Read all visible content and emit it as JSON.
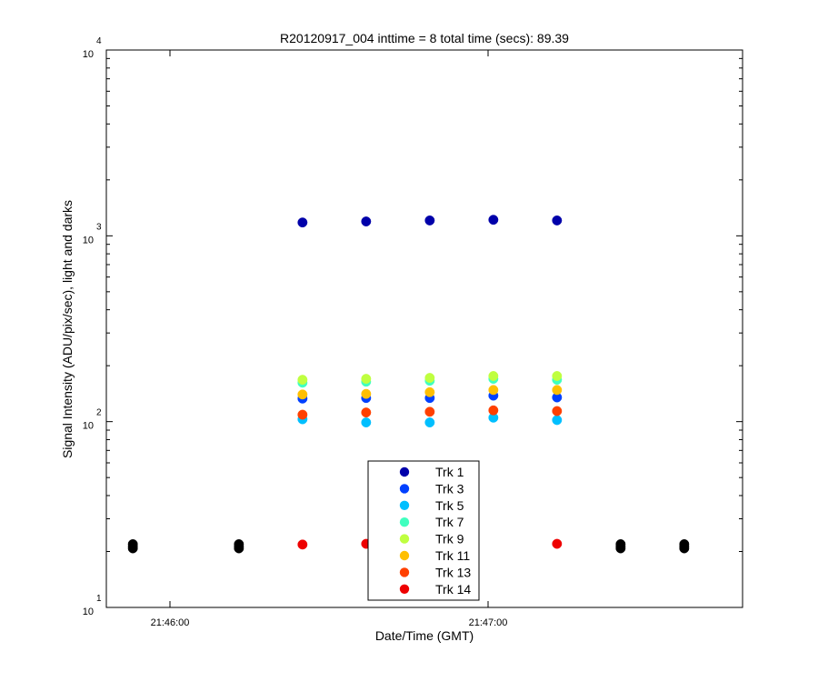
{
  "chart_data": {
    "type": "scatter",
    "title": "R20120917_004 inttime = 8 total time (secs): 89.39",
    "xlabel": "Date/Time (GMT)",
    "ylabel": "Signal Intensity (ADU/pix/sec), light and darks",
    "y_scale": "log",
    "ylim": [
      10,
      10000
    ],
    "xlim": [
      "21:45:48",
      "21:47:48"
    ],
    "x_ticks": [
      "21:46:00",
      "21:47:00"
    ],
    "y_ticks": [
      {
        "base": "10",
        "exp": "1"
      },
      {
        "base": "10",
        "exp": "2"
      },
      {
        "base": "10",
        "exp": "3"
      },
      {
        "base": "10",
        "exp": "4"
      }
    ],
    "legend_position": "bottom-center",
    "series": [
      {
        "name": "Trk 1",
        "color": "#0000AA",
        "x": [
          "21:46:25",
          "21:46:37",
          "21:46:49",
          "21:47:01",
          "21:47:13"
        ],
        "y": [
          1180,
          1195,
          1210,
          1220,
          1210
        ]
      },
      {
        "name": "Trk 3",
        "color": "#0040FF",
        "x": [
          "21:46:25",
          "21:46:37",
          "21:46:49",
          "21:47:01",
          "21:47:13"
        ],
        "y": [
          133,
          134,
          134,
          138,
          135
        ]
      },
      {
        "name": "Trk 5",
        "color": "#00BFFF",
        "x": [
          "21:46:25",
          "21:46:37",
          "21:46:49",
          "21:47:01",
          "21:47:13"
        ],
        "y": [
          103,
          99,
          99,
          105,
          102
        ]
      },
      {
        "name": "Trk 7",
        "color": "#40FFBF",
        "x": [
          "21:46:25",
          "21:46:37",
          "21:46:49",
          "21:47:01",
          "21:47:13"
        ],
        "y": [
          162,
          164,
          166,
          170,
          168
        ]
      },
      {
        "name": "Trk 9",
        "color": "#BFFF40",
        "x": [
          "21:46:25",
          "21:46:37",
          "21:46:49",
          "21:47:01",
          "21:47:13"
        ],
        "y": [
          168,
          170,
          172,
          176,
          176
        ]
      },
      {
        "name": "Trk 11",
        "color": "#FFBF00",
        "x": [
          "21:46:25",
          "21:46:37",
          "21:46:49",
          "21:47:01",
          "21:47:13"
        ],
        "y": [
          140,
          141,
          144,
          148,
          148
        ]
      },
      {
        "name": "Trk 13",
        "color": "#FF4000",
        "x": [
          "21:46:25",
          "21:46:37",
          "21:46:49",
          "21:47:01",
          "21:47:13"
        ],
        "y": [
          109,
          112,
          113,
          115,
          114
        ]
      },
      {
        "name": "Trk 14",
        "color": "#EE0000",
        "x": [
          "21:46:25",
          "21:46:37",
          "21:47:13"
        ],
        "y": [
          21.8,
          22,
          22
        ]
      },
      {
        "name": "",
        "color": "#000000",
        "x": [
          "21:45:53",
          "21:45:53",
          "21:45:53",
          "21:46:13",
          "21:46:13",
          "21:46:13",
          "21:47:25",
          "21:47:25",
          "21:47:25",
          "21:47:37",
          "21:47:37",
          "21:47:37"
        ],
        "y": [
          20.8,
          21.3,
          21.9,
          20.8,
          21.3,
          21.9,
          20.8,
          21.3,
          21.9,
          20.8,
          21.3,
          21.9
        ]
      }
    ]
  }
}
